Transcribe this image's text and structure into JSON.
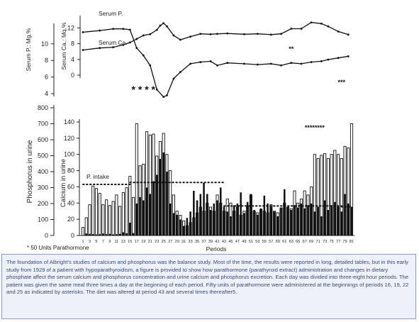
{
  "chart_data": {
    "type": "bar",
    "panels": [
      {
        "name": "serum",
        "left_axis_label": "Serum P.: Mg.%",
        "left_ticks": [
          4,
          6,
          8,
          10
        ],
        "right_axis_label": "Serum Ca.: Mq.%",
        "right_ticks": [
          0,
          4,
          8,
          12
        ],
        "series": [
          {
            "name": "Serum P.",
            "x": [
              1,
              6,
              10,
              13,
              15,
              17,
              19,
              21,
              23,
              25,
              26,
              28,
              30,
              33,
              36,
              39,
              41,
              44,
              49,
              53,
              57,
              60,
              63,
              66,
              69,
              72,
              74,
              77,
              80
            ],
            "y": [
              11.4,
              11.6,
              11.8,
              11.8,
              11.7,
              9.5,
              8.6,
              7.4,
              4.5,
              3.6,
              3.8,
              5.8,
              6.6,
              7.6,
              7.8,
              7.9,
              7.4,
              7.7,
              7.6,
              7.5,
              7.6,
              7.4,
              7.7,
              7.6,
              7.8,
              7.9,
              8.1,
              8.3,
              8.5
            ]
          },
          {
            "name": "Serum Ca.",
            "x": [
              1,
              6,
              10,
              13,
              15,
              17,
              19,
              21,
              23,
              24,
              25,
              26,
              28,
              30,
              33,
              36,
              39,
              41,
              44,
              49,
              53,
              57,
              60,
              63,
              66,
              69,
              72,
              74,
              77,
              80
            ],
            "y": [
              6.4,
              6.9,
              7.1,
              7.7,
              8.3,
              9.2,
              10.1,
              10.4,
              11.5,
              12.6,
              13.2,
              12.4,
              10.1,
              9.0,
              9.8,
              10.5,
              10.4,
              10.5,
              10.6,
              10.4,
              10.5,
              10.3,
              10.5,
              11.8,
              11.8,
              13.4,
              13.1,
              12.4,
              11.1,
              10.3
            ]
          }
        ],
        "markers": [
          {
            "text": "**",
            "x": 63
          },
          {
            "text": "***",
            "x": 78
          }
        ]
      },
      {
        "name": "urine",
        "left_axis_label": "Phosphorus in urine",
        "left_ticks": [
          0,
          100,
          200,
          300,
          400,
          500,
          600,
          700,
          800
        ],
        "right_axis_label": "Calcium in urine",
        "right_ticks": [
          0,
          20,
          40,
          60,
          80,
          100,
          120,
          140
        ],
        "xlabel": "Periods",
        "x_ticks": [
          "1",
          "3",
          "5",
          "7",
          "9",
          "11",
          "13",
          "15",
          "17",
          "19",
          "21",
          "23",
          "25",
          "27",
          "29",
          "31",
          "33",
          "35",
          "37",
          "39",
          "41",
          "43",
          "45",
          "47",
          "49",
          "51",
          "53",
          "55",
          "57",
          "59",
          "61",
          "63",
          "65",
          "67",
          "69",
          "71",
          "73",
          "75",
          "77",
          "79",
          "81"
        ],
        "p_intake_label": "P. intake",
        "p_intake": [
          {
            "from": 1,
            "to": 15,
            "value": 320
          },
          {
            "from": 15,
            "to": 43,
            "value": 332
          },
          {
            "from": 43,
            "to": 78,
            "value": 185
          },
          {
            "from": 78,
            "to": 81,
            "value": 180
          }
        ],
        "phosphorus": [
          2,
          12,
          10,
          8,
          6,
          8,
          12,
          8,
          10,
          6,
          8,
          10,
          20,
          14,
          80,
          15,
          200,
          240,
          220,
          300,
          260,
          340,
          380,
          480,
          520,
          400,
          200,
          140,
          130,
          100,
          60,
          110,
          150,
          280,
          220,
          260,
          330,
          260,
          160,
          200,
          220,
          300,
          180,
          150,
          120,
          190,
          200,
          270,
          140,
          210,
          260,
          160,
          130,
          170,
          250,
          200,
          180,
          150,
          120,
          175,
          290,
          180,
          160,
          190,
          175,
          200,
          170,
          190,
          200,
          150,
          180,
          120,
          220,
          160,
          190,
          210,
          180,
          150,
          260,
          200,
          180
        ],
        "calcium": [
          10,
          22,
          38,
          61,
          58,
          52,
          38,
          44,
          37,
          42,
          50,
          36,
          53,
          59,
          73,
          47,
          138,
          86,
          88,
          128,
          124,
          125,
          98,
          116,
          126,
          100,
          80,
          50,
          30,
          25,
          18,
          12,
          16,
          22,
          28,
          35,
          30,
          40,
          35,
          30,
          50,
          40,
          30,
          45,
          40,
          30,
          35,
          25,
          30,
          35,
          50,
          30,
          28,
          32,
          30,
          28,
          38,
          30,
          28,
          34,
          40,
          35,
          33,
          55,
          40,
          45,
          55,
          50,
          60,
          100,
          95,
          99,
          101,
          95,
          100,
          105,
          100,
          95,
          110,
          108,
          138
        ],
        "markers": [
          {
            "text": "* * * *",
            "x": 19
          },
          {
            "text": "********",
            "x": 70
          }
        ]
      }
    ]
  },
  "footnote": "* 50  Units Parathormone",
  "caption": "The foundation of Albright's studies of calcium and phosphorus was the balance study. Most of the time, the results were reported in long, detailed tables, but in this early study from 1929 of a patient with hypoparathyroidism, a figure is provided to show how parathormone (parathyroid extract) administration and changes in dietary phosphate affect the serum calcium and phosphorus concentration and urine calcium and phosphorus excretion. Each day was divided into three-eight hour periods. The patient was given the same meal three times a day at the beginning of each period. Fifty units of parathormone were administered at the beginnings of periods 16, 19, 22 and 25 as indicated by asterisks. The diet was altered at period 43 and several times thereafter5."
}
